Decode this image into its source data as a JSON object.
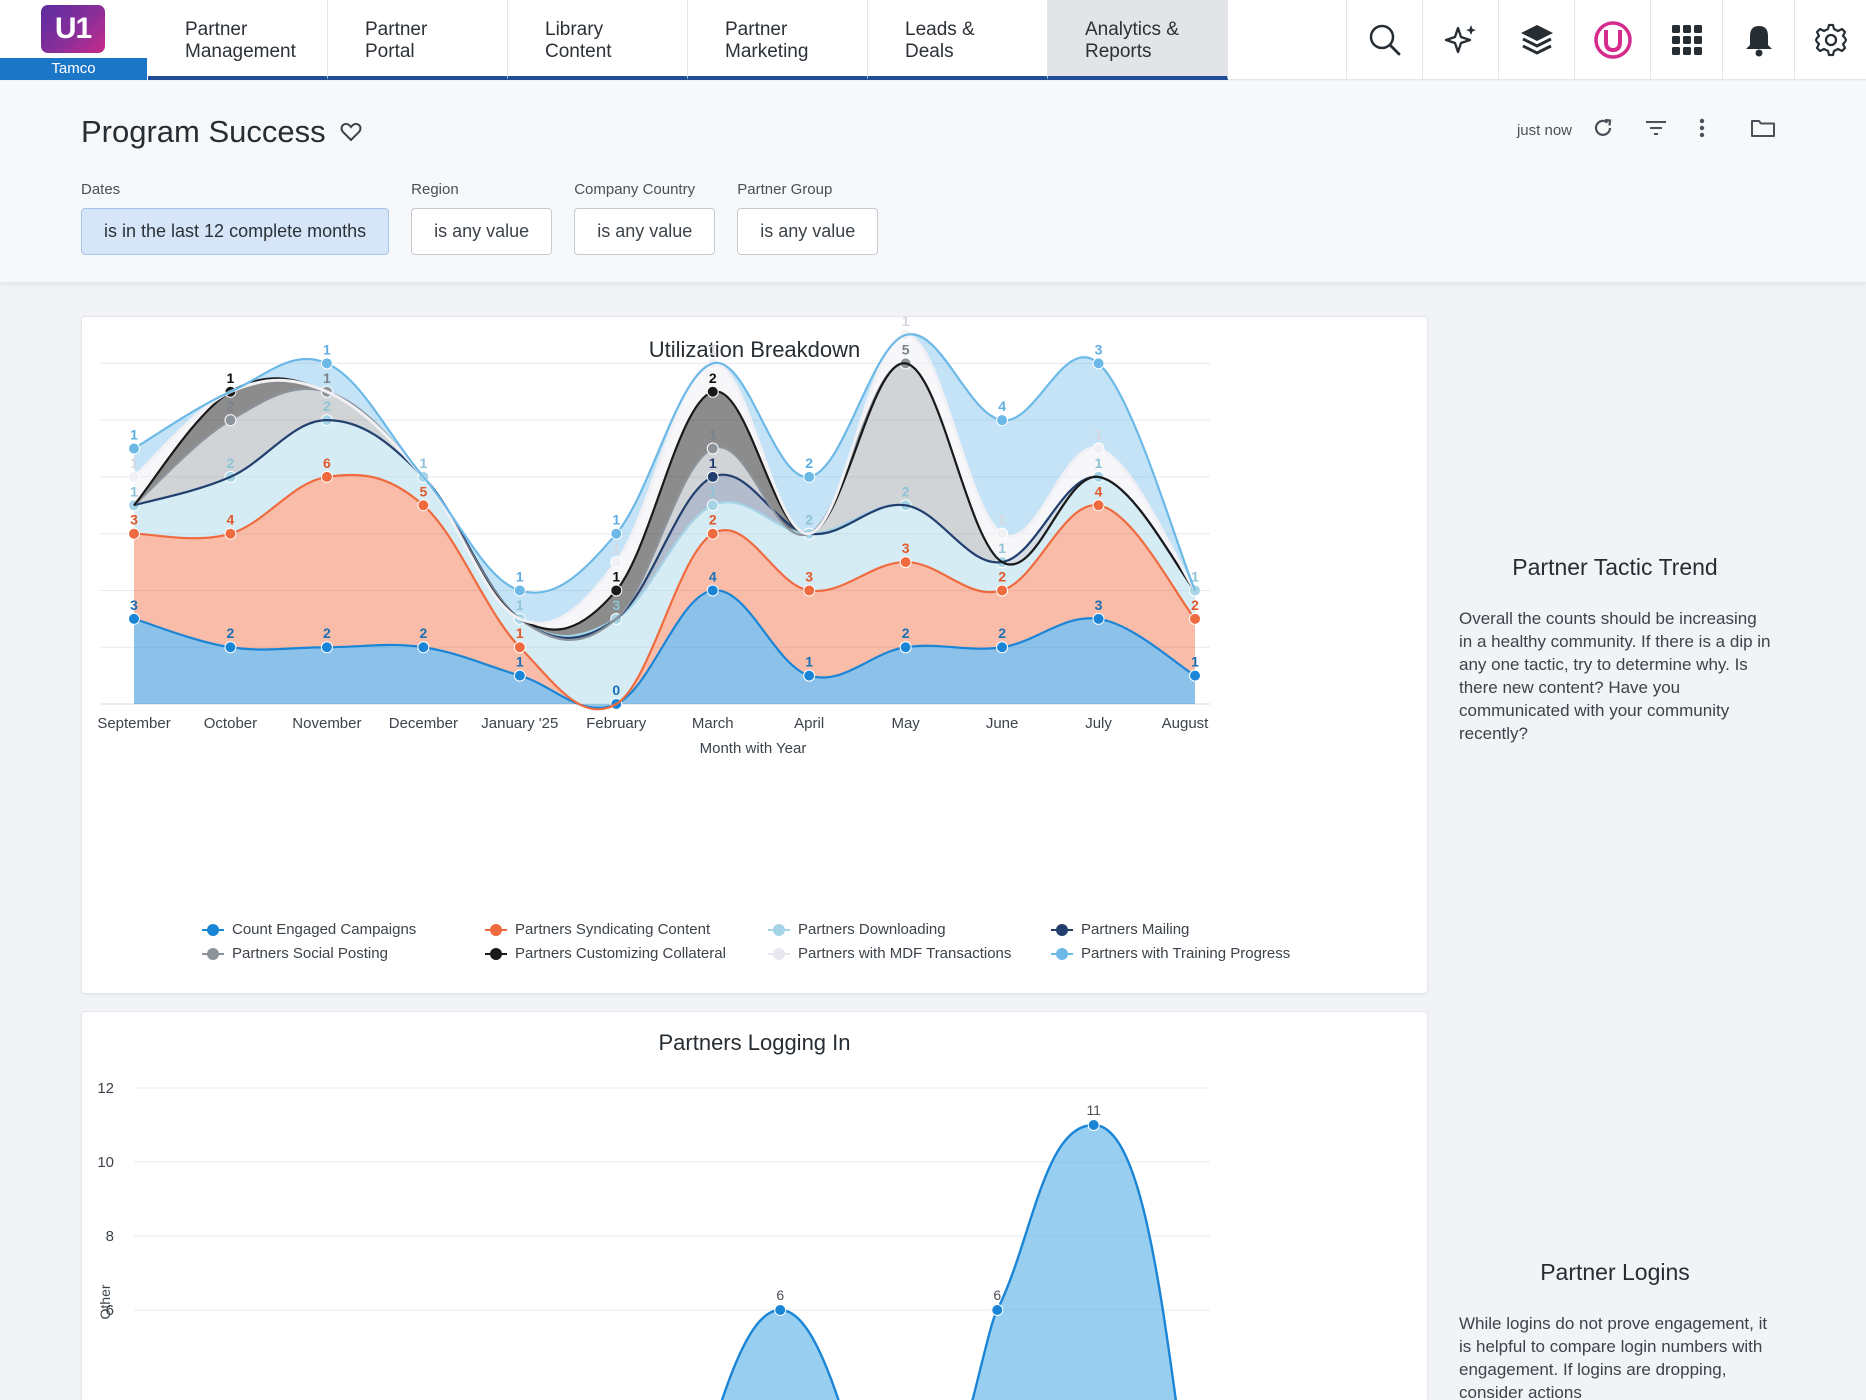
{
  "brand": {
    "logo_text": "U1",
    "company": "Tamco"
  },
  "nav": {
    "tabs": [
      {
        "line1": "Partner",
        "line2": "Management"
      },
      {
        "line1": "Partner",
        "line2": "Portal"
      },
      {
        "line1": "Library",
        "line2": "Content"
      },
      {
        "line1": "Partner",
        "line2": "Marketing"
      },
      {
        "line1": "Leads &",
        "line2": "Deals"
      },
      {
        "line1": "Analytics &",
        "line2": "Reports"
      }
    ],
    "active_tab": "Analytics & Reports",
    "icons": [
      "search-icon",
      "sparkle-icon",
      "layers-icon",
      "brand-mark-icon",
      "apps-grid-icon",
      "bell-icon",
      "gear-icon"
    ]
  },
  "dashboard": {
    "title": "Program Success",
    "last_run": "just now",
    "filters": [
      {
        "label": "Dates",
        "value": "is in the last 12 complete months"
      },
      {
        "label": "Region",
        "value": "is any value"
      },
      {
        "label": "Company Country",
        "value": "is any value"
      },
      {
        "label": "Partner Group",
        "value": "is any value"
      }
    ]
  },
  "side_notes": {
    "tactic": {
      "title": "Partner Tactic Trend",
      "text": "Overall the counts should be increasing in a healthy community. If there is a dip in any one tactic, try to determine why. Is there new content? Have you communicated with your community recently?"
    },
    "logins": {
      "title": "Partner Logins",
      "text": "While logins do not prove engagement, it is helpful to compare login numbers with engagement. If logins are dropping, consider actions"
    }
  },
  "colors": {
    "count_engaged_campaigns": "#1a85d6",
    "partners_syndicating_content": "#ef6b3f",
    "partners_downloading": "#a5d4e6",
    "partners_mailing": "#223f6e",
    "partners_social_posting": "#8c939b",
    "partners_customizing_collateral": "#1a1a1a",
    "partners_mdf_transactions": "#f1f0f5",
    "partners_training_progress": "#6cb9e8"
  },
  "chart_data": [
    {
      "type": "area",
      "stacked": true,
      "title": "Utilization Breakdown",
      "xlabel": "Month with Year",
      "ylabel": "",
      "ylim": [
        0,
        13
      ],
      "yticks": [
        2,
        4,
        6,
        8,
        10,
        12
      ],
      "grid": true,
      "legend_position": "bottom",
      "categories": [
        "September",
        "October",
        "November",
        "December",
        "January '25",
        "February",
        "March",
        "April",
        "May",
        "June",
        "July",
        "August"
      ],
      "series": [
        {
          "name": "Count Engaged Campaigns",
          "values": [
            3,
            2,
            2,
            2,
            1,
            0,
            4,
            1,
            2,
            2,
            3,
            1
          ]
        },
        {
          "name": "Partners Syndicating Content",
          "values": [
            3,
            4,
            6,
            5,
            1,
            0,
            2,
            3,
            3,
            2,
            4,
            2
          ]
        },
        {
          "name": "Partners Downloading",
          "values": [
            1,
            2,
            2,
            1,
            1,
            3,
            1,
            2,
            2,
            1,
            1,
            1
          ]
        },
        {
          "name": "Partners Mailing",
          "values": [
            0,
            0,
            0,
            0,
            0,
            0,
            1,
            0,
            0,
            0,
            0,
            0
          ]
        },
        {
          "name": "Partners Social Posting",
          "values": [
            0,
            2,
            1,
            0,
            0,
            0,
            1,
            0,
            5,
            0,
            0,
            0
          ]
        },
        {
          "name": "Partners Customizing Collateral",
          "values": [
            0,
            1,
            0,
            0,
            0,
            1,
            2,
            0,
            0,
            0,
            0,
            0
          ]
        },
        {
          "name": "Partners with MDF Transactions",
          "values": [
            1,
            0,
            0,
            0,
            0,
            1,
            1,
            0,
            1,
            1,
            1,
            0
          ]
        },
        {
          "name": "Partners with Training Progress",
          "values": [
            1,
            0,
            1,
            0,
            1,
            1,
            0,
            2,
            0,
            4,
            3,
            0
          ]
        }
      ]
    },
    {
      "type": "area",
      "title": "Partners Logging In",
      "xlabel": "",
      "ylabel": "Other",
      "ylim": [
        4,
        12.8
      ],
      "yticks": [
        6,
        8,
        10,
        12
      ],
      "grid": true,
      "visible_points": [
        {
          "x_index": 6.7,
          "value": 6
        },
        {
          "x_index": 8.95,
          "value": 6
        },
        {
          "x_index": 9.95,
          "value": 11
        }
      ]
    }
  ]
}
